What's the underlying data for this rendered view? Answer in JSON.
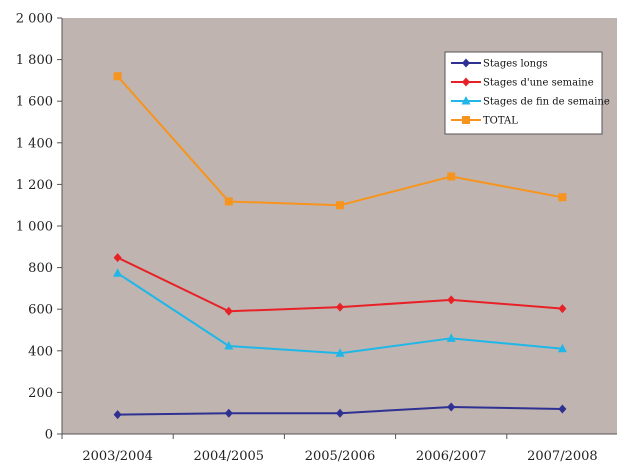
{
  "chart_data": {
    "type": "line",
    "title": "",
    "xlabel": "",
    "ylabel": "",
    "categories": [
      "2003/2004",
      "2004/2005",
      "2005/2006",
      "2006/2007",
      "2007/2008"
    ],
    "ylim": [
      0,
      2000
    ],
    "yticks": [
      0,
      200,
      400,
      600,
      800,
      1000,
      1200,
      1400,
      1600,
      1800,
      2000
    ],
    "ytick_labels": [
      "0",
      "200",
      "400",
      "600",
      "800",
      "1 000",
      "1 200",
      "1 400",
      "1 600",
      "1 800",
      "2 000"
    ],
    "grid": false,
    "legend_position": "top-right",
    "plot_background": "#c0b4b0",
    "series": [
      {
        "name": "Stages longs",
        "values": [
          93,
          100,
          100,
          130,
          120
        ],
        "color": "#2e3192",
        "marker": "diamond"
      },
      {
        "name": "Stages d'une semaine",
        "values": [
          848,
          590,
          610,
          645,
          603
        ],
        "color": "#e82127",
        "marker": "diamond"
      },
      {
        "name": "Stages de fin de semaine",
        "values": [
          773,
          423,
          388,
          460,
          410
        ],
        "color": "#1fb7e8",
        "marker": "triangle"
      },
      {
        "name": "TOTAL",
        "values": [
          1720,
          1118,
          1100,
          1238,
          1138
        ],
        "color": "#f7941d",
        "marker": "square"
      }
    ]
  }
}
